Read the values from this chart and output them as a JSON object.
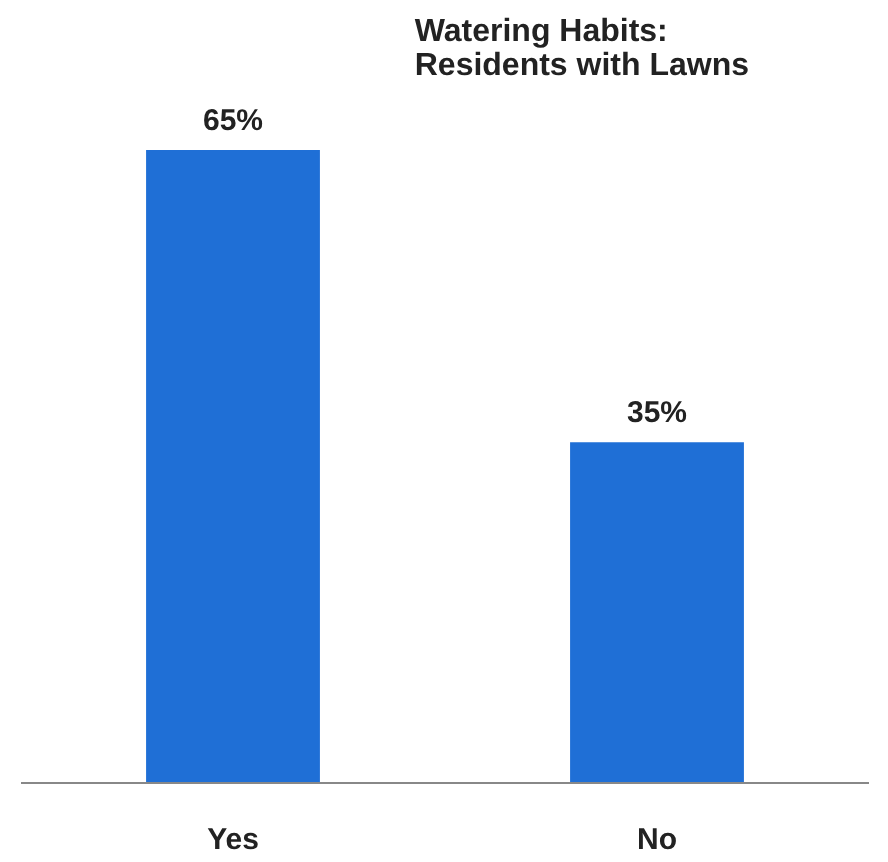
{
  "chart_data": {
    "type": "bar",
    "title": "Watering Habits:\nResidents with Lawns",
    "categories": [
      "Yes",
      "No"
    ],
    "values": [
      65,
      35
    ],
    "value_labels": [
      "65%",
      "35%"
    ],
    "color": "#1f6fd6",
    "grid": false
  }
}
